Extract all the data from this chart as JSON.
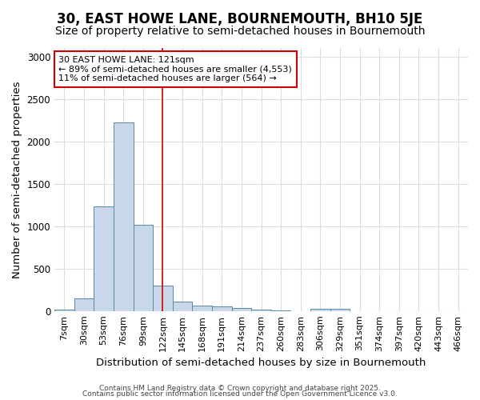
{
  "title": "30, EAST HOWE LANE, BOURNEMOUTH, BH10 5JE",
  "subtitle": "Size of property relative to semi-detached houses in Bournemouth",
  "xlabel": "Distribution of semi-detached houses by size in Bournemouth",
  "ylabel": "Number of semi-detached properties",
  "footer_line1": "Contains HM Land Registry data © Crown copyright and database right 2025.",
  "footer_line2": "Contains public sector information licensed under the Open Government Licence v3.0.",
  "bin_labels": [
    "7sqm",
    "30sqm",
    "53sqm",
    "76sqm",
    "99sqm",
    "122sqm",
    "145sqm",
    "168sqm",
    "191sqm",
    "214sqm",
    "237sqm",
    "260sqm",
    "283sqm",
    "306sqm",
    "329sqm",
    "351sqm",
    "374sqm",
    "397sqm",
    "420sqm",
    "443sqm",
    "466sqm"
  ],
  "bar_values": [
    15,
    150,
    1230,
    2220,
    1020,
    300,
    110,
    60,
    55,
    40,
    15,
    5,
    0,
    30,
    25,
    0,
    0,
    0,
    0,
    0,
    0
  ],
  "bar_color": "#c8d8ea",
  "bar_edge_color": "#5588aa",
  "property_line_index": 5,
  "property_line_color": "#cc0000",
  "annotation_line1": "30 EAST HOWE LANE: 121sqm",
  "annotation_line2": "← 89% of semi-detached houses are smaller (4,553)",
  "annotation_line3": "11% of semi-detached houses are larger (564) →",
  "annotation_box_color": "#cc0000",
  "annotation_text_color": "#000000",
  "ylim": [
    0,
    3100
  ],
  "yticks": [
    0,
    500,
    1000,
    1500,
    2000,
    2500,
    3000
  ],
  "bg_color": "#ffffff",
  "grid_color": "#dddddd",
  "title_fontsize": 12,
  "subtitle_fontsize": 10,
  "axis_label_fontsize": 9.5,
  "tick_label_fontsize": 8
}
